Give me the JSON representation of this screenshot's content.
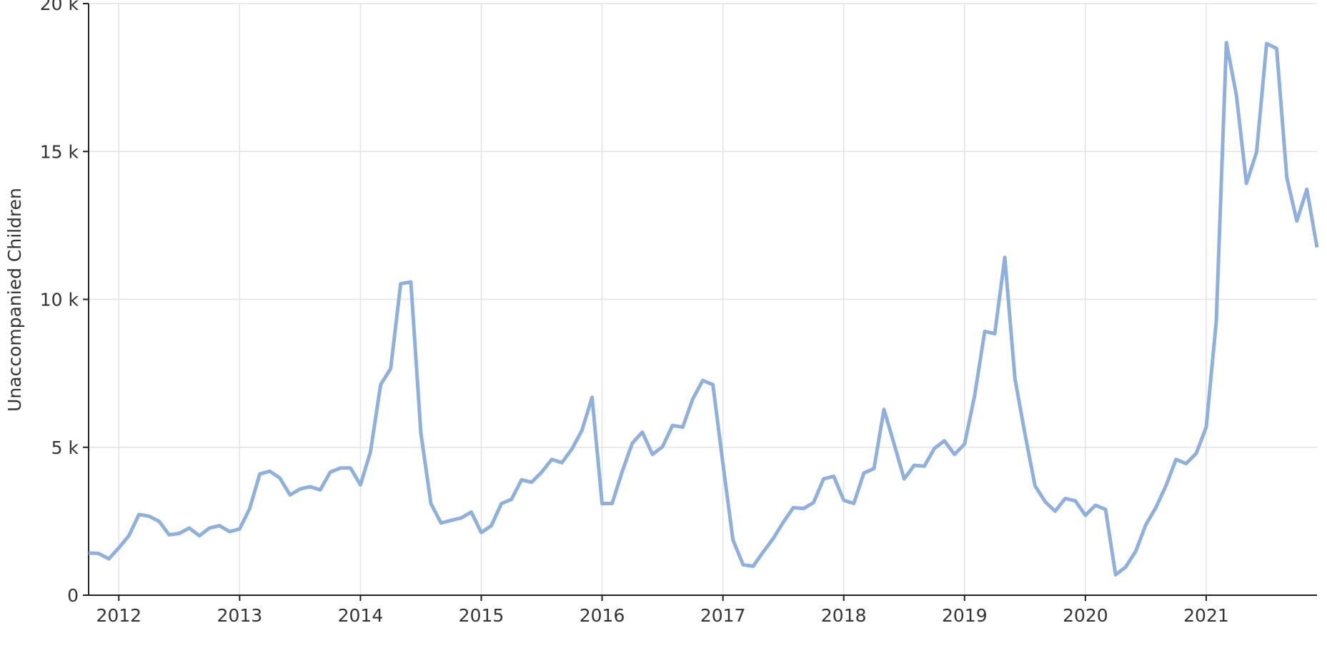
{
  "chart_data": {
    "type": "line",
    "y_label": "Unaccompanied Children",
    "x": [
      2011.75,
      2011.833,
      2011.917,
      2012,
      2012.083,
      2012.167,
      2012.25,
      2012.333,
      2012.417,
      2012.5,
      2012.583,
      2012.667,
      2012.75,
      2012.833,
      2012.917,
      2013,
      2013.083,
      2013.167,
      2013.25,
      2013.333,
      2013.417,
      2013.5,
      2013.583,
      2013.667,
      2013.75,
      2013.833,
      2013.917,
      2014,
      2014.083,
      2014.167,
      2014.25,
      2014.333,
      2014.417,
      2014.5,
      2014.583,
      2014.667,
      2014.75,
      2014.833,
      2014.917,
      2015,
      2015.083,
      2015.167,
      2015.25,
      2015.333,
      2015.417,
      2015.5,
      2015.583,
      2015.667,
      2015.75,
      2015.833,
      2015.917,
      2016,
      2016.083,
      2016.167,
      2016.25,
      2016.333,
      2016.417,
      2016.5,
      2016.583,
      2016.667,
      2016.75,
      2016.833,
      2016.917,
      2017,
      2017.083,
      2017.167,
      2017.25,
      2017.333,
      2017.417,
      2017.5,
      2017.583,
      2017.667,
      2017.75,
      2017.833,
      2017.917,
      2018,
      2018.083,
      2018.167,
      2018.25,
      2018.333,
      2018.417,
      2018.5,
      2018.583,
      2018.667,
      2018.75,
      2018.833,
      2018.917,
      2019,
      2019.083,
      2019.167,
      2019.25,
      2019.333,
      2019.417,
      2019.5,
      2019.583,
      2019.667,
      2019.75,
      2019.833,
      2019.917,
      2020,
      2020.083,
      2020.167,
      2020.25,
      2020.333,
      2020.417,
      2020.5,
      2020.583,
      2020.667,
      2020.75,
      2020.833,
      2020.917,
      2021,
      2021.083,
      2021.167,
      2021.25,
      2021.333,
      2021.417,
      2021.5,
      2021.583,
      2021.667,
      2021.75,
      2021.833,
      2021.917
    ],
    "series": [
      {
        "color": "#8fb0dc",
        "values": [
          1430,
          1410,
          1230,
          1600,
          2010,
          2730,
          2670,
          2500,
          2040,
          2090,
          2270,
          2010,
          2270,
          2350,
          2150,
          2240,
          2930,
          4100,
          4190,
          3960,
          3390,
          3590,
          3670,
          3560,
          4160,
          4300,
          4300,
          3730,
          4850,
          7120,
          7660,
          10530,
          10590,
          5480,
          3100,
          2440,
          2530,
          2610,
          2810,
          2120,
          2350,
          3100,
          3240,
          3900,
          3820,
          4160,
          4590,
          4480,
          4940,
          5570,
          6690,
          3100,
          3100,
          4190,
          5140,
          5510,
          4760,
          5020,
          5740,
          5680,
          6630,
          7260,
          7120,
          4450,
          1870,
          1030,
          980,
          1460,
          1920,
          2470,
          2960,
          2930,
          3130,
          3930,
          4020,
          3210,
          3100,
          4130,
          4280,
          6280,
          5110,
          3930,
          4390,
          4360,
          4960,
          5220,
          4760,
          5110,
          6740,
          8920,
          8840,
          11420,
          7320,
          5450,
          3700,
          3160,
          2840,
          3270,
          3190,
          2700,
          3040,
          2900,
          690,
          950,
          1490,
          2380,
          2960,
          3700,
          4590,
          4450,
          4790,
          5680,
          9240,
          18680,
          16900,
          13920,
          14980,
          18650,
          18480,
          14120,
          12650,
          13720,
          11760
        ]
      }
    ],
    "xlim": [
      2011.75,
      2021.917
    ],
    "xticks": [
      2012,
      2013,
      2014,
      2015,
      2016,
      2017,
      2018,
      2019,
      2020,
      2021
    ],
    "ylim": [
      0,
      20000
    ],
    "yticks": [
      0,
      {
        "value": 5000,
        "label": "5 k"
      },
      {
        "value": 10000,
        "label": "10 k"
      },
      {
        "value": 15000,
        "label": "15 k"
      },
      {
        "value": 20000,
        "label": "20 k"
      }
    ],
    "grid": true,
    "line_width": 5
  }
}
